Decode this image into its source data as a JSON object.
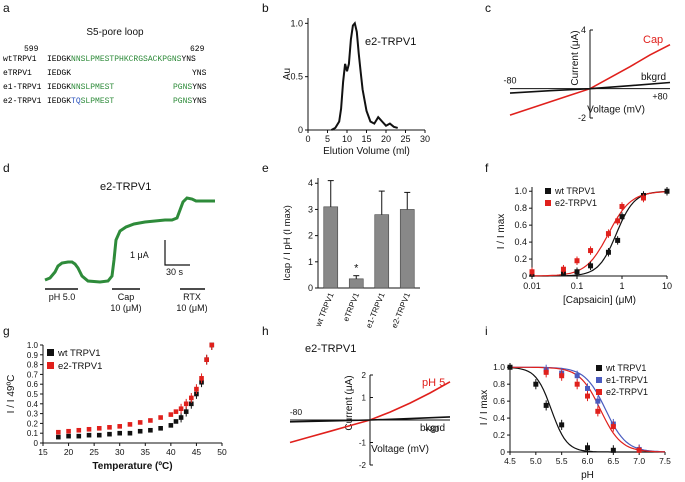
{
  "panels": {
    "a": {
      "letter": "a",
      "title": "S5-pore loop",
      "num_left": "599",
      "num_right": "629",
      "rows": [
        {
          "name": "wtTRPV1",
          "black1": "IEDGK",
          "green": "NNSLPMESTPHKCRGSACKPGNS",
          "black2": "YNS"
        },
        {
          "name": "eTRPV1",
          "black1": "IEDGK",
          "green": "",
          "black2": "YNS"
        },
        {
          "name": "e1-TRPV1",
          "black1": "IEDGK",
          "green": "NNSLPMEST",
          "green2": "PGNS",
          "black2": "YNS"
        },
        {
          "name": "e2-TRPV1",
          "black1": "IEDGK",
          "blue": "TQ",
          "green": "SLPMEST",
          "green2": "PGNS",
          "black2": "YNS"
        }
      ],
      "colors": {
        "green": "#2e8b3a",
        "blue": "#2a52be"
      }
    },
    "b": {
      "letter": "b",
      "label": "e2-TRPV1"
    },
    "c": {
      "letter": "c"
    },
    "d": {
      "letter": "d",
      "label": "e2-TRPV1",
      "scale_y": "1 μA",
      "scale_x": "30 s",
      "stim": [
        {
          "label": "pH 5.0",
          "conc": ""
        },
        {
          "label": "Cap",
          "conc": "10 (μM)"
        },
        {
          "label": "RTX",
          "conc": "10 (μM)"
        }
      ],
      "trace_color": "#2e8b3a"
    },
    "e": {
      "letter": "e"
    },
    "f": {
      "letter": "f"
    },
    "g": {
      "letter": "g"
    },
    "h": {
      "letter": "h",
      "label": "e2-TRPV1"
    },
    "i": {
      "letter": "i"
    }
  },
  "chart_data": [
    {
      "id": "b",
      "type": "line",
      "xlabel": "Elution Volume (ml)",
      "ylabel": "Au",
      "xticks": [
        0,
        5,
        10,
        15,
        20,
        25,
        30
      ],
      "yticks": [
        0,
        0.5,
        1.0
      ],
      "xlim": [
        0,
        30
      ],
      "ylim": [
        0,
        1.05
      ],
      "series": [
        {
          "x": [
            6,
            7,
            8,
            8.5,
            9,
            9.5,
            10,
            10.5,
            11,
            11.5,
            12,
            12.5,
            13,
            13.5,
            14,
            15,
            16,
            17,
            18,
            19,
            20,
            21,
            22,
            23
          ],
          "y": [
            0,
            0.02,
            0.08,
            0.2,
            0.45,
            0.62,
            0.55,
            0.62,
            0.85,
            0.98,
            1.0,
            0.92,
            0.72,
            0.55,
            0.38,
            0.18,
            0.08,
            0.06,
            0.12,
            0.08,
            0.04,
            0.06,
            0.03,
            0.02
          ],
          "color": "#111111"
        }
      ]
    },
    {
      "id": "c",
      "type": "line",
      "xlabel": "Voltage (mV)",
      "ylabel": "Current (μA)",
      "xlim": [
        -80,
        80
      ],
      "ylim": [
        -2,
        4
      ],
      "xtick_labels": [
        "-80",
        "+80"
      ],
      "yticks": [
        -2,
        4
      ],
      "series": [
        {
          "name": "Cap",
          "color": "#e0201c",
          "x": [
            -80,
            -60,
            -40,
            -20,
            0,
            20,
            40,
            60,
            80
          ],
          "y": [
            -1.8,
            -1.35,
            -0.9,
            -0.45,
            0,
            0.75,
            1.5,
            2.3,
            3.0
          ]
        },
        {
          "name": "bkgrd",
          "color": "#111111",
          "x": [
            -80,
            -40,
            0,
            40,
            80
          ],
          "y": [
            -0.3,
            -0.14,
            0,
            0.2,
            0.42
          ]
        }
      ]
    },
    {
      "id": "e",
      "type": "bar",
      "ylabel": "Icap / I pH (I max)",
      "categories": [
        "wt TRPV1",
        "eTRPV1",
        "e1-TRPV1",
        "e2-TRPV1"
      ],
      "values": [
        3.1,
        0.35,
        2.8,
        3.0
      ],
      "errors": [
        1.0,
        0.12,
        0.9,
        0.65
      ],
      "ylim": [
        0,
        4.2
      ],
      "annotation": "*",
      "bar_color": "#888888"
    },
    {
      "id": "f",
      "type": "scatter",
      "xlabel": "[Capsaicin] (μM)",
      "ylabel": "I / I max",
      "xscale": "log",
      "xlim": [
        0.01,
        10
      ],
      "ylim": [
        0,
        1.05
      ],
      "xtick_labels": [
        "0.01",
        "0.1",
        "1",
        "10"
      ],
      "yticks": [
        0,
        0.2,
        0.4,
        0.6,
        0.8,
        1.0
      ],
      "series": [
        {
          "name": "wt TRPV1",
          "color": "#111111",
          "x": [
            0.01,
            0.05,
            0.1,
            0.2,
            0.5,
            0.8,
            1,
            3,
            10
          ],
          "y": [
            0.02,
            0.03,
            0.05,
            0.12,
            0.28,
            0.42,
            0.7,
            0.95,
            1.0
          ]
        },
        {
          "name": "e2-TRPV1",
          "color": "#e0201c",
          "x": [
            0.01,
            0.05,
            0.1,
            0.2,
            0.5,
            0.8,
            1,
            3
          ],
          "y": [
            0.05,
            0.08,
            0.18,
            0.3,
            0.5,
            0.65,
            0.82,
            0.92
          ]
        }
      ]
    },
    {
      "id": "g",
      "type": "scatter",
      "xlabel": "Temperature (ºC)",
      "ylabel": "I / I 49ºC",
      "xlim": [
        15,
        50
      ],
      "ylim": [
        0,
        1.0
      ],
      "xticks": [
        15,
        20,
        25,
        30,
        35,
        40,
        45,
        50
      ],
      "yticks": [
        0,
        0.1,
        0.2,
        0.3,
        0.4,
        0.5,
        0.6,
        0.7,
        0.8,
        0.9,
        1.0
      ],
      "series": [
        {
          "name": "wt TRPV1",
          "color": "#111111",
          "x": [
            18,
            20,
            22,
            24,
            26,
            28,
            30,
            32,
            34,
            36,
            38,
            40,
            41,
            42,
            43,
            44,
            45,
            46,
            47,
            48
          ],
          "y": [
            0.06,
            0.07,
            0.07,
            0.08,
            0.08,
            0.09,
            0.1,
            0.1,
            0.12,
            0.13,
            0.15,
            0.18,
            0.22,
            0.26,
            0.32,
            0.4,
            0.5,
            0.62,
            0.85,
            1.0
          ]
        },
        {
          "name": "e2-TRPV1",
          "color": "#e0201c",
          "x": [
            18,
            20,
            22,
            24,
            26,
            28,
            30,
            32,
            34,
            36,
            38,
            40,
            41,
            42,
            43,
            44,
            45,
            46,
            47,
            48
          ],
          "y": [
            0.11,
            0.12,
            0.13,
            0.14,
            0.15,
            0.16,
            0.17,
            0.19,
            0.21,
            0.23,
            0.26,
            0.29,
            0.32,
            0.35,
            0.4,
            0.46,
            0.55,
            0.66,
            0.85,
            1.0
          ]
        }
      ]
    },
    {
      "id": "h",
      "type": "line",
      "xlabel": "Voltage (mV)",
      "ylabel": "Current (μA)",
      "xlim": [
        -80,
        80
      ],
      "ylim": [
        -2,
        2
      ],
      "xtick_labels": [
        "-80",
        "+80"
      ],
      "yticks": [
        -2,
        -1,
        0,
        1,
        2
      ],
      "series": [
        {
          "name": "pH 5",
          "color": "#e0201c",
          "x": [
            -80,
            -60,
            -40,
            -20,
            0,
            20,
            40,
            60,
            80
          ],
          "y": [
            -1.0,
            -0.75,
            -0.5,
            -0.25,
            0,
            0.35,
            0.75,
            1.2,
            1.7
          ]
        },
        {
          "name": "bkgrd",
          "color": "#111111",
          "x": [
            -80,
            -40,
            0,
            40,
            80
          ],
          "y": [
            -0.08,
            -0.04,
            0,
            0.06,
            0.14
          ]
        }
      ]
    },
    {
      "id": "i",
      "type": "scatter",
      "xlabel": "pH",
      "ylabel": "I / I max",
      "xlim": [
        4.5,
        7.5
      ],
      "ylim": [
        0,
        1.05
      ],
      "xticks": [
        4.5,
        5.0,
        5.5,
        6.0,
        6.5,
        7.0,
        7.5
      ],
      "yticks": [
        0,
        0.2,
        0.4,
        0.6,
        0.8,
        1.0
      ],
      "series": [
        {
          "name": "wt TRPV1",
          "color": "#111111",
          "x": [
            4.5,
            5.0,
            5.2,
            5.5,
            6.0,
            6.5
          ],
          "y": [
            1.0,
            0.8,
            0.55,
            0.32,
            0.05,
            0.02
          ]
        },
        {
          "name": "e1-TRPV1",
          "color": "#4a5bbf",
          "x": [
            5.2,
            5.5,
            5.8,
            6.0,
            6.2,
            6.5,
            7.0
          ],
          "y": [
            0.97,
            0.93,
            0.9,
            0.75,
            0.6,
            0.33,
            0.03
          ]
        },
        {
          "name": "e2-TRPV1",
          "color": "#e0201c",
          "x": [
            5.2,
            5.5,
            5.8,
            6.0,
            6.2,
            6.5,
            7.0
          ],
          "y": [
            0.94,
            0.9,
            0.8,
            0.66,
            0.48,
            0.3,
            0.02
          ]
        }
      ]
    }
  ]
}
